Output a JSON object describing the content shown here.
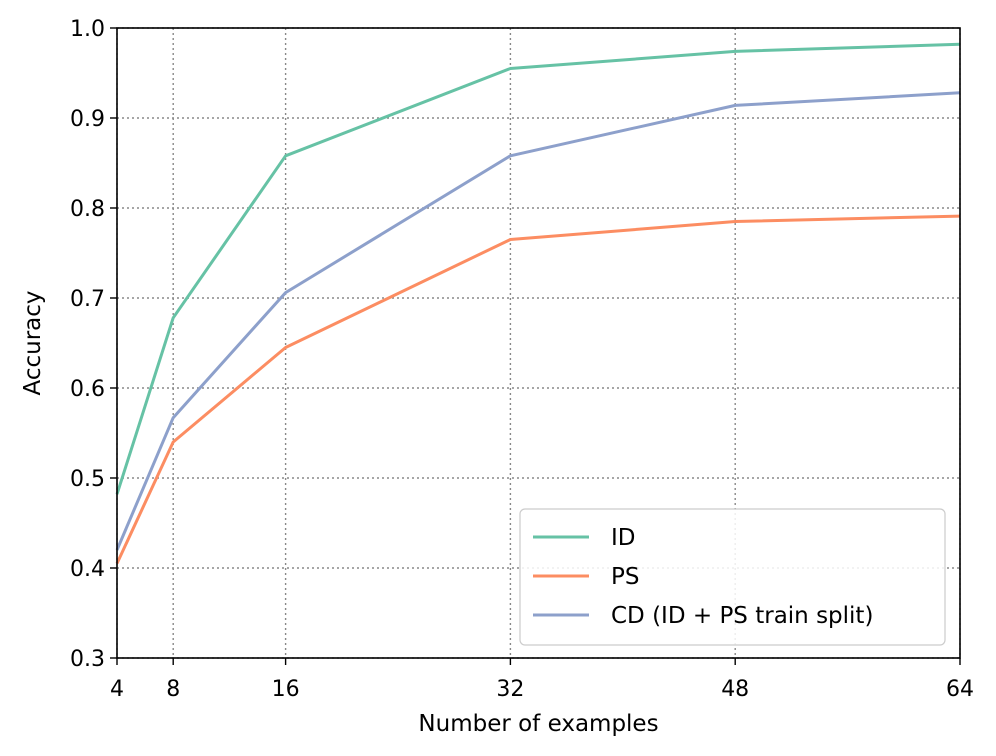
{
  "chart_data": {
    "type": "line",
    "title": "",
    "xlabel": "Number of examples",
    "ylabel": "Accuracy",
    "x": [
      4,
      8,
      16,
      32,
      48,
      64
    ],
    "xticks": [
      4,
      8,
      16,
      32,
      48,
      64
    ],
    "yticks": [
      0.3,
      0.4,
      0.5,
      0.6,
      0.7,
      0.8,
      0.9,
      1.0
    ],
    "ytick_labels": [
      "0.3",
      "0.4",
      "0.5",
      "0.6",
      "0.7",
      "0.8",
      "0.9",
      "1.0"
    ],
    "xlim": [
      4,
      64
    ],
    "ylim": [
      0.3,
      1.0
    ],
    "grid": true,
    "legend_position": "lower-right",
    "series": [
      {
        "name": "ID",
        "color": "#66c2a5",
        "values": [
          0.482,
          0.678,
          0.858,
          0.955,
          0.974,
          0.982
        ]
      },
      {
        "name": "PS",
        "color": "#fc8d62",
        "values": [
          0.405,
          0.54,
          0.645,
          0.765,
          0.785,
          0.791
        ]
      },
      {
        "name": "CD (ID + PS train split)",
        "color": "#8da0cb",
        "values": [
          0.42,
          0.567,
          0.706,
          0.858,
          0.914,
          0.928
        ]
      }
    ]
  }
}
